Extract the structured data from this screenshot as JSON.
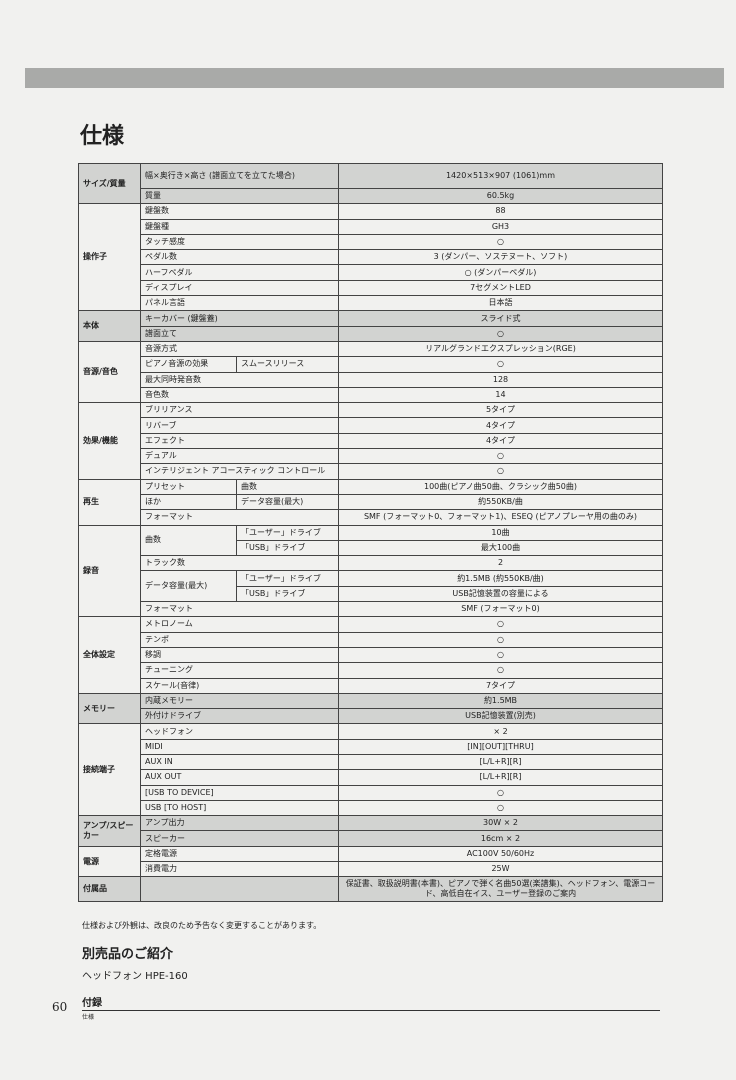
{
  "title": "仕様",
  "spec_table": [
    {
      "group": "サイズ/質量",
      "shade": true,
      "rows": [
        {
          "item": "幅×奥行き×高さ (譜面立てを立てた場合)",
          "value": "1420×513×907 (1061)mm",
          "tall": true
        },
        {
          "item": "質量",
          "value": "60.5kg"
        }
      ]
    },
    {
      "group": "操作子",
      "rows": [
        {
          "item": "鍵盤数",
          "value": "88"
        },
        {
          "item": "鍵盤種",
          "value": "GH3"
        },
        {
          "item": "タッチ感度",
          "value": "○"
        },
        {
          "item": "ペダル数",
          "value": "3 (ダンパー、ソステヌート、ソフト)"
        },
        {
          "item": "ハーフペダル",
          "value": "○ (ダンパーペダル)"
        },
        {
          "item": "ディスプレイ",
          "value": "7セグメントLED"
        },
        {
          "item": "パネル言語",
          "value": "日本語"
        }
      ]
    },
    {
      "group": "本体",
      "shade": true,
      "rows": [
        {
          "item": "キーカバー (鍵盤蓋)",
          "value": "スライド式"
        },
        {
          "item": "譜面立て",
          "value": "○"
        }
      ]
    },
    {
      "group": "音源/音色",
      "rows": [
        {
          "item": "音源方式",
          "value": "リアルグランドエクスプレッション(RGE)"
        },
        {
          "item": "ピアノ音源の効果",
          "sub": "スムースリリース",
          "value": "○"
        },
        {
          "item": "最大同時発音数",
          "value": "128"
        },
        {
          "item": "音色数",
          "value": "14"
        }
      ]
    },
    {
      "group": "効果/機能",
      "rows": [
        {
          "item": "ブリリアンス",
          "value": "5タイプ"
        },
        {
          "item": "リバーブ",
          "value": "4タイプ"
        },
        {
          "item": "エフェクト",
          "value": "4タイプ"
        },
        {
          "item": "デュアル",
          "value": "○"
        },
        {
          "item": "インテリジェント アコースティック コントロール",
          "value": "○"
        }
      ]
    },
    {
      "group": "再生",
      "rows": [
        {
          "item": "プリセット",
          "sub": "曲数",
          "value": "100曲(ピアノ曲50曲、クラシック曲50曲)"
        },
        {
          "item": "ほか",
          "sub": "データ容量(最大)",
          "value": "約550KB/曲"
        },
        {
          "item": "フォーマット",
          "value": "SMF (フォーマット0、フォーマット1)、ESEQ (ピアノプレーヤ用の曲のみ)"
        }
      ]
    },
    {
      "group": "録音",
      "rows": [
        {
          "item": "曲数",
          "item_span": 2,
          "sub": "「ユーザー」ドライブ",
          "value": "10曲"
        },
        {
          "sub": "「USB」ドライブ",
          "value": "最大100曲"
        },
        {
          "item": "トラック数",
          "value": "2"
        },
        {
          "item": "データ容量(最大)",
          "item_span": 2,
          "sub": "「ユーザー」ドライブ",
          "value": "約1.5MB (約550KB/曲)"
        },
        {
          "sub": "「USB」ドライブ",
          "value": "USB記憶装置の容量による"
        },
        {
          "item": "フォーマット",
          "value": "SMF (フォーマット0)"
        }
      ]
    },
    {
      "group": "全体設定",
      "rows": [
        {
          "item": "メトロノーム",
          "value": "○"
        },
        {
          "item": "テンポ",
          "value": "○"
        },
        {
          "item": "移調",
          "value": "○"
        },
        {
          "item": "チューニング",
          "value": "○"
        },
        {
          "item": "スケール(音律)",
          "value": "7タイプ"
        }
      ]
    },
    {
      "group": "メモリー",
      "shade": true,
      "rows": [
        {
          "item": "内蔵メモリー",
          "value": "約1.5MB"
        },
        {
          "item": "外付けドライブ",
          "value": "USB記憶装置(別売)"
        }
      ]
    },
    {
      "group": "接続端子",
      "rows": [
        {
          "item": "ヘッドフォン",
          "value": "× 2"
        },
        {
          "item": "MIDI",
          "value": "[IN][OUT][THRU]"
        },
        {
          "item": "AUX IN",
          "value": "[L/L+R][R]"
        },
        {
          "item": "AUX OUT",
          "value": "[L/L+R][R]"
        },
        {
          "item": "[USB TO DEVICE]",
          "value": "○"
        },
        {
          "item": "USB [TO HOST]",
          "value": "○"
        }
      ]
    },
    {
      "group": "アンプ/スピーカー",
      "shade": true,
      "rows": [
        {
          "item": "アンプ出力",
          "value": "30W × 2"
        },
        {
          "item": "スピーカー",
          "value": "16cm × 2"
        }
      ]
    },
    {
      "group": "電源",
      "rows": [
        {
          "item": "定格電源",
          "value": "AC100V 50/60Hz"
        },
        {
          "item": "消費電力",
          "value": "25W"
        }
      ]
    },
    {
      "group": "付属品",
      "shade": true,
      "rows": [
        {
          "item": "",
          "value": "保証書、取扱説明書(本書)、ピアノで弾く名曲50選(楽譜集)、ヘッドフォン、電源コード、高低自在イス、ユーザー登録のご案内",
          "tall": true
        }
      ]
    }
  ],
  "note": "仕様および外観は、改良のため予告なく変更することがあります。",
  "accessories": {
    "title": "別売品のご紹介",
    "item": "ヘッドフォン HPE-160"
  },
  "footer": {
    "page_number": "60",
    "section": "付録",
    "subsection": "仕様"
  }
}
